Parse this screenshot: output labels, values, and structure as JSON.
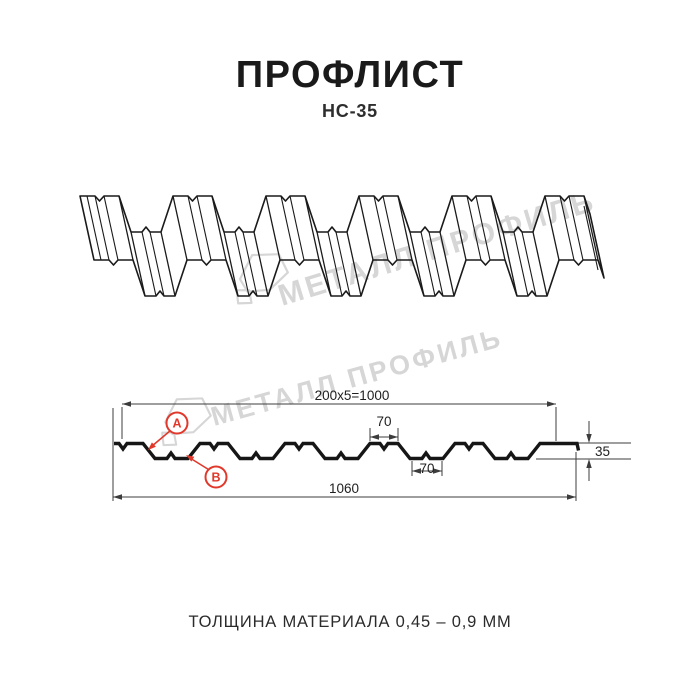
{
  "page": {
    "title": "ПРОФЛИСТ",
    "subtitle": "НС-35",
    "footer": "ТОЛЩИНА МАТЕРИАЛА 0,45 – 0,9 ММ"
  },
  "watermark": {
    "text": "МЕТАЛЛ ПРОФИЛЬ"
  },
  "section_dims": {
    "module_total": "200x5=1000",
    "top_flange": "70",
    "bottom_flange": "70",
    "overall_width": "1060",
    "height": "35"
  },
  "markers": {
    "a": "A",
    "b": "B"
  },
  "colors": {
    "ink": "#1a1a1a",
    "dim": "#3c3c3c",
    "red": "#e0392b",
    "watermark": "#d6d6d6"
  }
}
